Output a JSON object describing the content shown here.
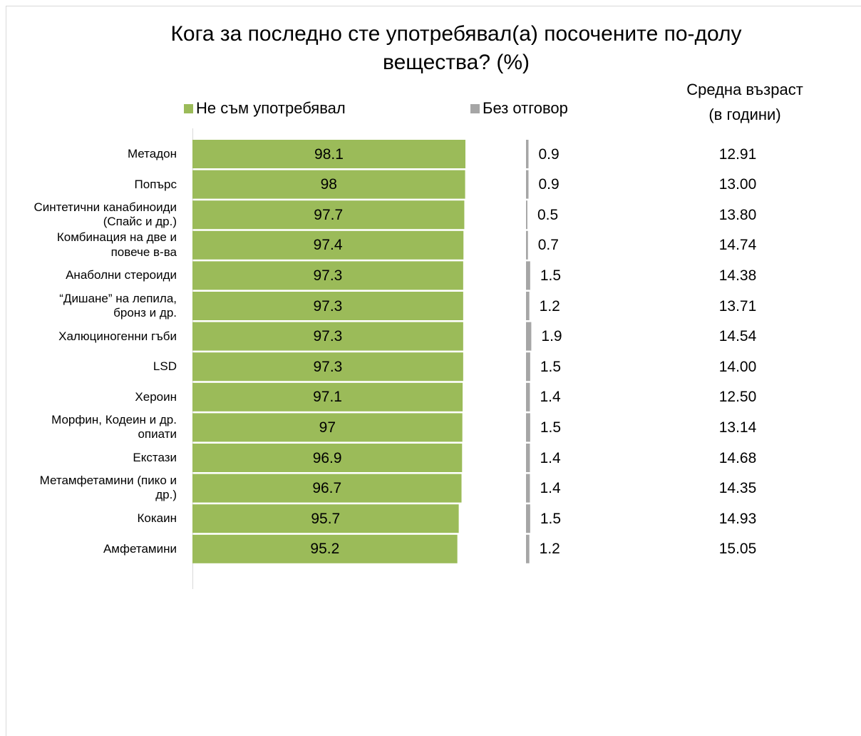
{
  "chart_data": {
    "type": "bar",
    "orientation": "horizontal",
    "title": "Кога за последно сте употребявал(а) посочените по-долу\nвещества? (%)",
    "categories": [
      "Метадон",
      "Попърс",
      "Синтетични канабиноиди\n(Спайс и др.)",
      "Комбинация на две и\nповече в-ва",
      "Анаболни стероиди",
      "“Дишане” на лепила,\nбронз и др.",
      "Халюциногенни гъби",
      "LSD",
      "Хероин",
      "Морфин, Кодеин и др.\nопиати",
      "Екстази",
      "Метамфетамини (пико и\nдр.)",
      "Кокаин",
      "Амфетамини"
    ],
    "series": [
      {
        "name": "Не съм употребявал",
        "color": "#9bbb59",
        "values": [
          98.1,
          98,
          97.7,
          97.4,
          97.3,
          97.3,
          97.3,
          97.3,
          97.1,
          97,
          96.9,
          96.7,
          95.7,
          95.2
        ]
      },
      {
        "name": "Без отговор",
        "color": "#a6a6a6",
        "values": [
          0.9,
          0.9,
          0.5,
          0.7,
          1.5,
          1.2,
          1.9,
          1.5,
          1.4,
          1.5,
          1.4,
          1.4,
          1.5,
          1.2
        ]
      }
    ],
    "xlim": [
      0,
      100
    ],
    "age_column": {
      "title": "Средна възраст\n(в години)",
      "values": [
        "12.91",
        "13.00",
        "13.80",
        "14.74",
        "14.38",
        "13.71",
        "14.54",
        "14.00",
        "12.50",
        "13.14",
        "14.68",
        "14.35",
        "14.93",
        "15.05"
      ]
    }
  }
}
